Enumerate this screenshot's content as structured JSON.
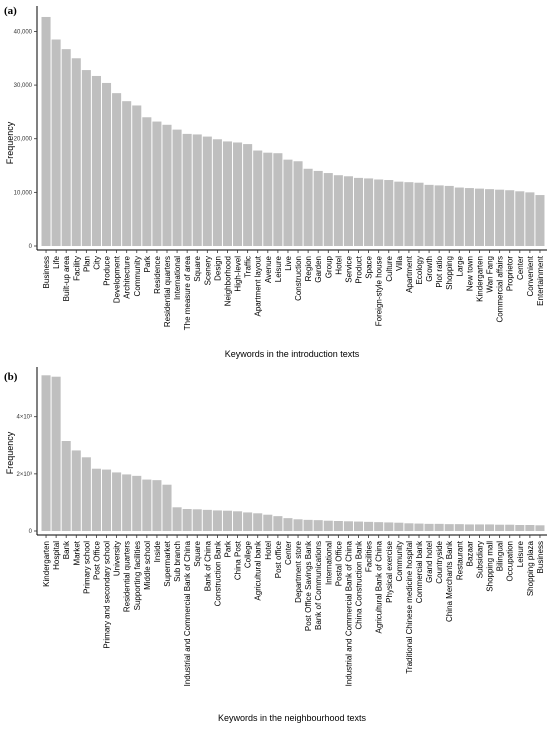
{
  "chart_data": [
    {
      "panel_label": "(a)",
      "type": "bar",
      "xlabel": "Keywords in the introduction texts",
      "ylabel": "Frequency",
      "ylim": [
        0,
        44000
      ],
      "yticks": [
        0,
        10000,
        20000,
        30000,
        40000
      ],
      "ytick_labels": [
        "0",
        "10,000",
        "20,000",
        "30,000",
        "40,000"
      ],
      "grid": false,
      "categories": [
        "Business",
        "Life",
        "Built-up area",
        "Facility",
        "Plan",
        "City",
        "Produce",
        "Development",
        "Architecture",
        "Community",
        "Park",
        "Residence",
        "Residential quarters",
        "International",
        "The measure of area",
        "Square",
        "Scenery",
        "Design",
        "Neighborhood",
        "High-level",
        "Traffic",
        "Apartment layout",
        "Avenue",
        "Leisure",
        "Live",
        "Construction",
        "Region",
        "Garden",
        "Group",
        "Hotel",
        "Service",
        "Product",
        "Space",
        "Foreign-style house",
        "Culture",
        "Villa",
        "Apartment",
        "Ecology",
        "Growth",
        "Plot ratio",
        "Shopping",
        "Large",
        "New town",
        "Kindergarten",
        "Wan Fang",
        "Commercial affairs",
        "Proprietor",
        "Center",
        "Convenient",
        "Entertainment"
      ],
      "values": [
        42700,
        38500,
        36700,
        35000,
        32800,
        31700,
        30400,
        28500,
        27000,
        26200,
        24000,
        23200,
        22600,
        21700,
        20900,
        20800,
        20400,
        19900,
        19500,
        19300,
        19000,
        17800,
        17400,
        17300,
        16100,
        15800,
        14400,
        14000,
        13600,
        13200,
        13000,
        12700,
        12600,
        12400,
        12300,
        12000,
        11900,
        11800,
        11400,
        11300,
        11200,
        10900,
        10800,
        10700,
        10600,
        10500,
        10400,
        10200,
        10000,
        9500
      ]
    },
    {
      "panel_label": "(b)",
      "type": "bar",
      "xlabel": "Keywords in the neighbourhood texts",
      "ylabel": "Frequency",
      "ylim": [
        0,
        5600
      ],
      "yticks": [
        0,
        2000,
        4000
      ],
      "ytick_labels": [
        "0",
        "2×10³",
        "4×10³"
      ],
      "grid": false,
      "categories": [
        "Kindergarten",
        "Hospital",
        "Bank",
        "Market",
        "Primary school",
        "Post Office",
        "Primary and secondary school",
        "University",
        "Residential quarters",
        "Supporting facilities",
        "Middle school",
        "Inside",
        "Supermarket",
        "Sub branch",
        "Industrial and Commercial Bank of China",
        "Square",
        "Bank of China",
        "Construction Bank",
        "Park",
        "China Post",
        "College",
        "Agricultural bank",
        "Hotel",
        "Post office",
        "Center",
        "Department store",
        "Post Office Savings Bank",
        "Bank of Communications",
        "International",
        "Postal Office",
        "Industrial and Commercial Bank of China",
        "China Construction Bank",
        "Facilities",
        "Agricultural Bank of China",
        "Physical exercise",
        "Community",
        "Traditional Chinese medicine hospital",
        "Commercial bank",
        "Grand hotel",
        "Countryside",
        "China Merchants Bank",
        "Restaurant",
        "Bazaar",
        "Subsidiary",
        "Shopping mall",
        "Bilingual",
        "Occupation",
        "Leisure",
        "Shopping plaza",
        "Business"
      ],
      "values": [
        5450,
        5400,
        3150,
        2820,
        2580,
        2180,
        2150,
        2050,
        1980,
        1930,
        1800,
        1780,
        1620,
        830,
        770,
        760,
        740,
        720,
        710,
        690,
        650,
        620,
        570,
        520,
        450,
        410,
        390,
        380,
        360,
        350,
        340,
        330,
        320,
        310,
        300,
        290,
        270,
        260,
        250,
        250,
        240,
        240,
        230,
        230,
        230,
        220,
        220,
        210,
        210,
        200
      ]
    }
  ]
}
